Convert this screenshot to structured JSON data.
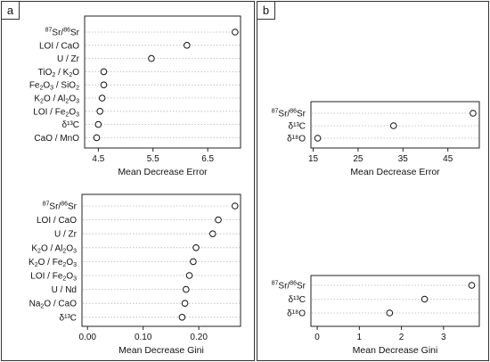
{
  "panels": {
    "a": {
      "tag": "a"
    },
    "b": {
      "tag": "b"
    }
  },
  "chart_data": [
    {
      "id": "a_top",
      "panel": "a",
      "type": "scatter",
      "xlabel": "Mean Decrease Error",
      "xlim": [
        4.25,
        7.1
      ],
      "xticks": [
        4.5,
        5.5,
        6.5
      ],
      "tick_labels": [
        "4.5",
        "5.5",
        "6.5"
      ],
      "labels": [
        {
          "pre": "87",
          "mid": "Sr/",
          "pre2": "86",
          "post": "Sr"
        },
        {
          "text": "LOI / CaO"
        },
        {
          "text": "U / Zr"
        },
        {
          "parts": [
            "TiO",
            {
              "sub": "2"
            },
            " / K",
            {
              "sub": "2"
            },
            "O"
          ]
        },
        {
          "parts": [
            "Fe",
            {
              "sub": "2"
            },
            "O",
            {
              "sub": "3"
            },
            " / SiO",
            {
              "sub": "2"
            }
          ]
        },
        {
          "parts": [
            "K",
            {
              "sub": "2"
            },
            "O / Al",
            {
              "sub": "2"
            },
            "O",
            {
              "sub": "3"
            }
          ]
        },
        {
          "parts": [
            "LOI / Fe",
            {
              "sub": "2"
            },
            "O",
            {
              "sub": "3"
            }
          ]
        },
        {
          "text": "δ¹³C"
        },
        {
          "text": "CaO / MnO"
        }
      ],
      "values": [
        7.0,
        6.12,
        5.47,
        4.6,
        4.6,
        4.57,
        4.53,
        4.5,
        4.47
      ]
    },
    {
      "id": "a_bottom",
      "panel": "a",
      "type": "scatter",
      "xlabel": "Mean Decrease Gini",
      "xlim": [
        -0.01,
        0.275
      ],
      "xticks": [
        0.0,
        0.1,
        0.2
      ],
      "tick_labels": [
        "0.00",
        "0.10",
        "0.20"
      ],
      "labels": [
        {
          "pre": "87",
          "mid": "Sr/",
          "pre2": "86",
          "post": "Sr"
        },
        {
          "text": "LOI / CaO"
        },
        {
          "text": "U / Zr"
        },
        {
          "parts": [
            "K",
            {
              "sub": "2"
            },
            "O / Al",
            {
              "sub": "2"
            },
            "O",
            {
              "sub": "3"
            }
          ]
        },
        {
          "parts": [
            "K",
            {
              "sub": "2"
            },
            "O / Fe",
            {
              "sub": "2"
            },
            "O",
            {
              "sub": "3"
            }
          ]
        },
        {
          "parts": [
            "LOI / Fe",
            {
              "sub": "2"
            },
            "O",
            {
              "sub": "3"
            }
          ]
        },
        {
          "text": "U / Nd"
        },
        {
          "parts": [
            "Na",
            {
              "sub": "2"
            },
            "O / CaO"
          ]
        },
        {
          "text": "δ¹³C"
        }
      ],
      "values": [
        0.265,
        0.235,
        0.225,
        0.195,
        0.19,
        0.183,
        0.177,
        0.175,
        0.17
      ]
    },
    {
      "id": "b_top",
      "panel": "b",
      "type": "scatter",
      "xlabel": "Mean Decrease Error",
      "xlim": [
        14.5,
        52.0
      ],
      "xticks": [
        15,
        25,
        35,
        45
      ],
      "tick_labels": [
        "15",
        "25",
        "35",
        "45"
      ],
      "labels": [
        {
          "pre": "87",
          "mid": "Sr/",
          "pre2": "86",
          "post": "Sr"
        },
        {
          "text": "δ¹³C"
        },
        {
          "text": "δ¹⁸O"
        }
      ],
      "values": [
        50.6,
        32.9,
        16.0
      ]
    },
    {
      "id": "b_bottom",
      "panel": "b",
      "type": "scatter",
      "xlabel": "Mean Decrease Gini",
      "xlim": [
        -0.15,
        3.85
      ],
      "xticks": [
        0,
        1,
        2,
        3
      ],
      "tick_labels": [
        "0",
        "1",
        "2",
        "3"
      ],
      "labels": [
        {
          "pre": "87",
          "mid": "Sr/",
          "pre2": "86",
          "post": "Sr"
        },
        {
          "text": "δ¹³C"
        },
        {
          "text": "δ¹⁸O"
        }
      ],
      "values": [
        3.67,
        2.55,
        1.72
      ]
    }
  ]
}
